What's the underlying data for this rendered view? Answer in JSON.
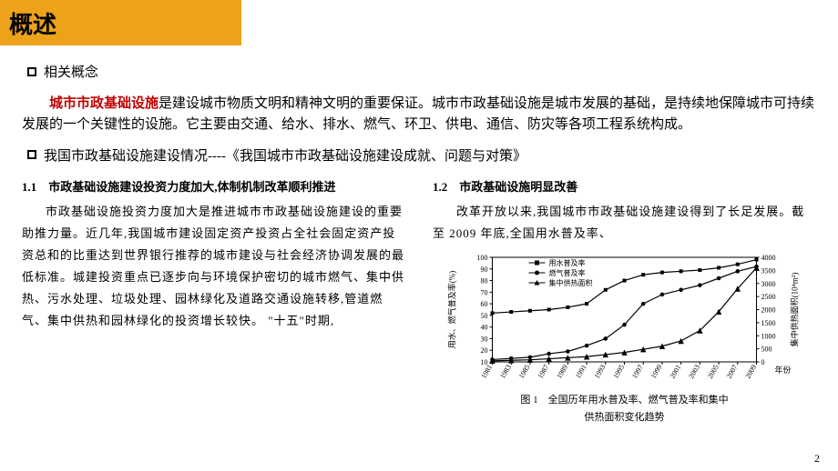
{
  "title": "概述",
  "bullet1": "相关概念",
  "intro_highlight": "城市市政基础设施",
  "intro_rest": "是建设城市物质文明和精神文明的重要保证。城市市政基础设施是城市发展的基础，是持续地保障城市可持续发展的一个关键性的设施。它主要由交通、给水、排水、燃气、环卫、供电、通信、防灾等各项工程系统构成。",
  "bullet2": "我国市政基础设施建设情况----《我国城市市政基础设施建设成就、问题与对策》",
  "left_heading": "1.1　市政基础设施建设投资力度加大,体制机制改革顺利推进",
  "left_body": "市政基础设施投资力度加大是推进城市市政基础设施建设的重要助推力量。近几年,我国城市建设固定资产投资占全社会固定资产投资总和的比重达到世界银行推荐的城市建设与社会经济协调发展的最低标准。城建投资重点已逐步向与环境保护密切的城市燃气、集中供热、污水处理、垃圾处理、园林绿化及道路交通设施转移,管道燃气、集中供热和园林绿化的投资增长较快。 \"十五\"时期,",
  "right_heading": "1.2　市政基础设施明显改善",
  "right_body": "改革开放以来,我国城市市政基础设施建设得到了长足发展。截至 2009 年底,全国用水普及率、",
  "chart": {
    "type": "line",
    "title1": "图 1　全国历年用水普及率、燃气普及率和集中",
    "title2": "供热面积变化趋势",
    "y_left_label": "用水、燃气普及率(%)",
    "y_right_label": "集中供热面积(10⁴m²)",
    "x_label": "年份",
    "legend": [
      "用水普及率",
      "燃气普及率",
      "集中供热面积"
    ],
    "years": [
      "1981",
      "1983",
      "1985",
      "1987",
      "1989",
      "1991",
      "1993",
      "1995",
      "1997",
      "1999",
      "2001",
      "2003",
      "2005",
      "2007",
      "2009"
    ],
    "y_left_ticks": [
      10,
      20,
      30,
      40,
      50,
      60,
      70,
      80,
      90,
      100
    ],
    "y_right_ticks": [
      0,
      500,
      1000,
      1500,
      2000,
      2500,
      3000,
      3500,
      4000
    ],
    "series1": [
      52,
      53,
      54,
      55,
      57,
      60,
      72,
      80,
      85,
      87,
      88,
      89,
      91,
      94,
      98
    ],
    "series2": [
      12,
      13,
      14,
      17,
      19,
      24,
      30,
      42,
      60,
      68,
      72,
      76,
      82,
      88,
      92
    ],
    "series3": [
      1,
      1.5,
      2,
      3,
      4,
      5,
      7,
      9,
      12,
      15,
      20,
      30,
      48,
      70,
      90
    ],
    "colors": {
      "axis": "#000000",
      "line": "#000000",
      "bg": "#ffffff"
    },
    "marker_size": 3.2,
    "line_width": 1.2,
    "font_size_axis": 8,
    "font_size_legend": 8
  },
  "page_number": "2"
}
